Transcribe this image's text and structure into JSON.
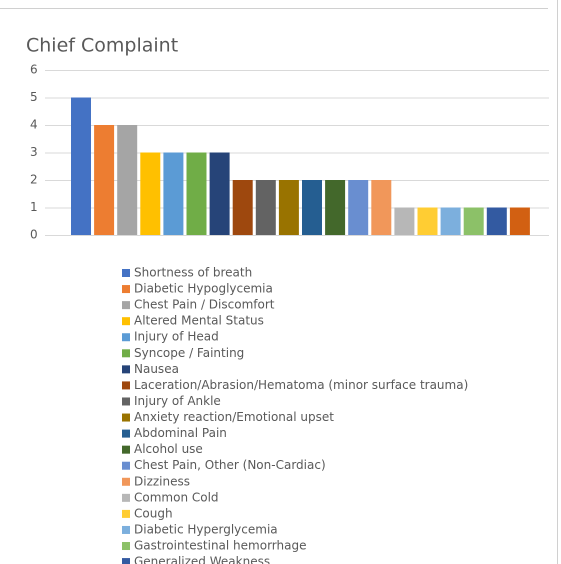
{
  "chart_data": {
    "type": "bar",
    "title": "Chief Complaint",
    "ylim": [
      0,
      6
    ],
    "yticks": [
      0,
      1,
      2,
      3,
      4,
      5,
      6
    ],
    "grid": true,
    "legend": "bottom",
    "series": [
      {
        "name": "Shortness of breath",
        "color": "#4472c4",
        "values": [
          5
        ]
      },
      {
        "name": "Diabetic Hypoglycemia",
        "color": "#ed7d31",
        "values": [
          4
        ]
      },
      {
        "name": "Chest Pain / Discomfort",
        "color": "#a5a5a5",
        "values": [
          4
        ]
      },
      {
        "name": "Altered Mental Status",
        "color": "#ffc000",
        "values": [
          3
        ]
      },
      {
        "name": "Injury of Head",
        "color": "#5b9bd5",
        "values": [
          3
        ]
      },
      {
        "name": "Syncope / Fainting",
        "color": "#70ad47",
        "values": [
          3
        ]
      },
      {
        "name": "Nausea",
        "color": "#264478",
        "values": [
          3
        ]
      },
      {
        "name": "Laceration/Abrasion/Hematoma (minor surface trauma)",
        "color": "#9e480e",
        "values": [
          2
        ]
      },
      {
        "name": "Injury of Ankle",
        "color": "#636363",
        "values": [
          2
        ]
      },
      {
        "name": "Anxiety reaction/Emotional upset",
        "color": "#997300",
        "values": [
          2
        ]
      },
      {
        "name": "Abdominal Pain",
        "color": "#255e91",
        "values": [
          2
        ]
      },
      {
        "name": "Alcohol use",
        "color": "#43682b",
        "values": [
          2
        ]
      },
      {
        "name": "Chest Pain, Other (Non-Cardiac)",
        "color": "#698ed0",
        "values": [
          2
        ]
      },
      {
        "name": "Dizziness",
        "color": "#f1975a",
        "values": [
          2
        ]
      },
      {
        "name": "Common Cold",
        "color": "#b7b7b7",
        "values": [
          1
        ]
      },
      {
        "name": "Cough",
        "color": "#ffcd33",
        "values": [
          1
        ]
      },
      {
        "name": "Diabetic Hyperglycemia",
        "color": "#7cafdd",
        "values": [
          1
        ]
      },
      {
        "name": "Gastrointestinal hemorrhage",
        "color": "#8cc168",
        "values": [
          1
        ]
      },
      {
        "name": "Generalized Weakness",
        "color": "#335aa1",
        "values": [
          1
        ]
      },
      {
        "name": null,
        "color": "#d26012",
        "values": [
          1
        ]
      }
    ]
  }
}
